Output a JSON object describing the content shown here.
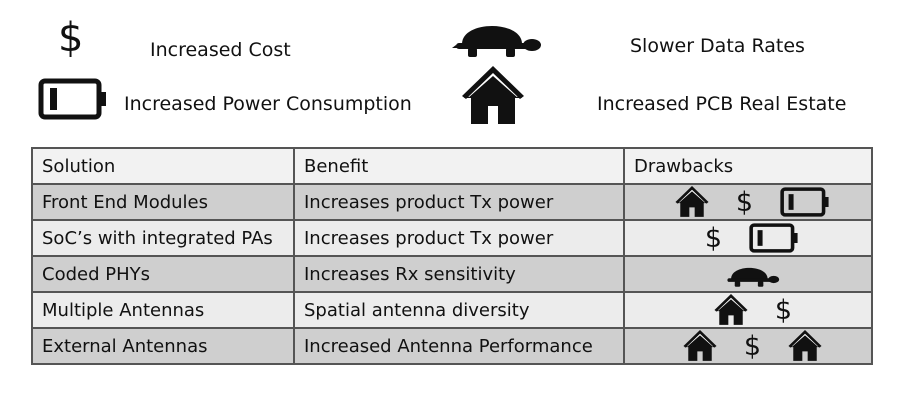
{
  "legend": [
    {
      "id": "cost",
      "icon": "dollar-icon",
      "label": "Increased Cost"
    },
    {
      "id": "power",
      "icon": "battery-icon",
      "label": "Increased Power Consumption"
    },
    {
      "id": "slow",
      "icon": "turtle-icon",
      "label": "Slower Data Rates"
    },
    {
      "id": "pcb",
      "icon": "house-icon",
      "label": "Increased PCB Real Estate"
    }
  ],
  "table": {
    "headers": [
      "Solution",
      "Benefit",
      "Drawbacks"
    ],
    "rows": [
      {
        "solution": "Front End Modules",
        "benefit": "Increases product Tx power",
        "drawbacks": [
          "house-icon",
          "dollar-icon",
          "battery-icon"
        ]
      },
      {
        "solution": "SoC’s with integrated PAs",
        "benefit": "Increases product Tx power",
        "drawbacks": [
          "dollar-icon",
          "battery-icon"
        ]
      },
      {
        "solution": "Coded PHYs",
        "benefit": "Increases Rx sensitivity",
        "drawbacks": [
          "turtle-icon"
        ]
      },
      {
        "solution": "Multiple Antennas",
        "benefit": "Spatial antenna diversity",
        "drawbacks": [
          "house-icon",
          "dollar-icon"
        ]
      },
      {
        "solution": "External Antennas",
        "benefit": "Increased Antenna Performance",
        "drawbacks": [
          "house-icon",
          "dollar-icon",
          "house-icon"
        ]
      }
    ]
  },
  "symbols": {
    "dollar": "$"
  },
  "colors": {
    "icon": "#111111",
    "row_dark": "#cfcfcf",
    "row_light": "#ececec",
    "border": "#555555"
  }
}
